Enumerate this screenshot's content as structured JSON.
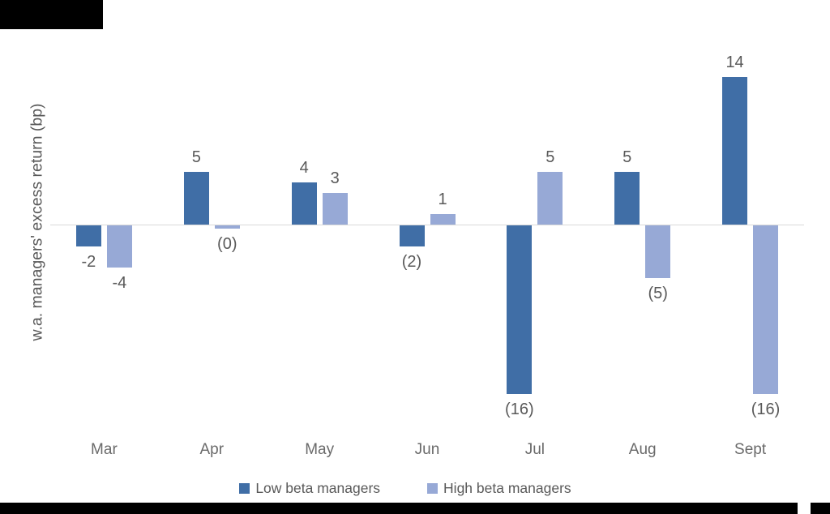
{
  "page": {
    "background": "#ffffff",
    "decor": {
      "top_left_block_color": "#000000",
      "bottom_bar_color": "#000000"
    }
  },
  "chart_data": {
    "type": "bar",
    "title": "",
    "xlabel": "",
    "ylabel": "w.a. managers' excess return (bp)",
    "categories": [
      "Mar",
      "Apr",
      "May",
      "Jun",
      "Jul",
      "Aug",
      "Sept"
    ],
    "series": [
      {
        "name": "Low beta managers",
        "color": "#406EA6",
        "values": [
          -2,
          5,
          4,
          -2,
          -16,
          5,
          14
        ],
        "labels": [
          "-2",
          "5",
          "4",
          "(2)",
          "(16)",
          "5",
          "14"
        ]
      },
      {
        "name": "High beta managers",
        "color": "#97A9D6",
        "values": [
          -4,
          0,
          3,
          1,
          5,
          -5,
          -16
        ],
        "labels": [
          "-4",
          "(0)",
          "3",
          "1",
          "5",
          "(5)",
          "(16)"
        ]
      }
    ],
    "baseline": 0,
    "ylim": [
      -16,
      14
    ],
    "grid": "off",
    "zero_line_color": "#D9D9D9",
    "value_label_color": "#595959",
    "axis_text_color": "#6A6A6A",
    "legend_position": "bottom"
  }
}
